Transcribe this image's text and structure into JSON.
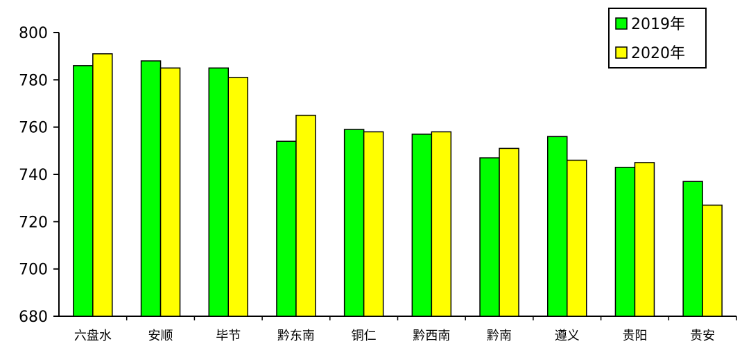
{
  "chart_data": {
    "type": "bar",
    "title": "",
    "xlabel": "",
    "ylabel": "",
    "ylim": [
      680,
      800
    ],
    "yticks": [
      680,
      700,
      720,
      740,
      760,
      780,
      800
    ],
    "grid": false,
    "legend_position": "top-right",
    "categories": [
      "六盘水",
      "安顺",
      "毕节",
      "黔东南",
      "铜仁",
      "黔西南",
      "黔南",
      "遵义",
      "贵阳",
      "贵安"
    ],
    "series": [
      {
        "name": "2019年",
        "color": "#00FF00",
        "values": [
          786,
          788,
          785,
          754,
          759,
          757,
          747,
          756,
          743,
          737
        ]
      },
      {
        "name": "2020年",
        "color": "#FFFF00",
        "values": [
          791,
          785,
          781,
          765,
          758,
          758,
          751,
          746,
          745,
          727
        ]
      }
    ]
  }
}
